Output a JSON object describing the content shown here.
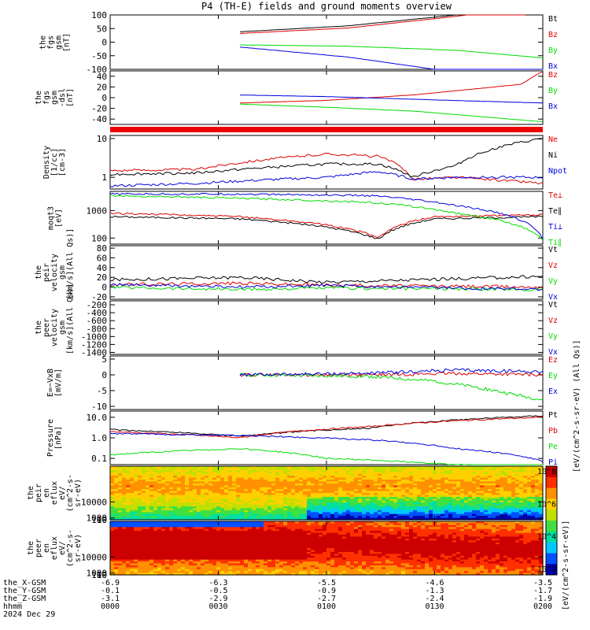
{
  "title": "P4 (TH-E) fields and ground moments overview",
  "colors": {
    "black": "#000000",
    "red": "#dd0000",
    "green": "#00dd00",
    "blue": "#0000dd"
  },
  "chart_data": [
    {
      "type": "line",
      "id": "fgs-gsm",
      "ylabel_lines": [
        "the",
        "fgs",
        "gsm",
        "[nT]"
      ],
      "ylim": [
        -100,
        100
      ],
      "yticks": [
        100,
        50,
        0,
        -50,
        -100
      ],
      "series": [
        {
          "name": "Bt",
          "color": "#000000",
          "t": [
            0.3,
            0.55,
            0.8,
            0.96
          ],
          "v": [
            38,
            60,
            100,
            140
          ]
        },
        {
          "name": "Bz",
          "color": "#dd0000",
          "t": [
            0.3,
            0.55,
            0.8,
            0.96
          ],
          "v": [
            32,
            52,
            95,
            130
          ]
        },
        {
          "name": "By",
          "color": "#00dd00",
          "t": [
            0.3,
            0.55,
            0.8,
            1.0
          ],
          "v": [
            -10,
            -15,
            -30,
            -58
          ]
        },
        {
          "name": "Bx",
          "color": "#0000dd",
          "t": [
            0.3,
            0.55,
            0.75,
            1.0
          ],
          "v": [
            -18,
            -55,
            -100,
            -140
          ]
        }
      ]
    },
    {
      "type": "line",
      "id": "fgs-dsl",
      "ylabel_lines": [
        "the",
        "fgs",
        "gsm",
        "-dsl",
        "[nT]"
      ],
      "ylim": [
        -50,
        50
      ],
      "yticks": [
        40,
        20,
        0,
        -20,
        -40
      ],
      "series": [
        {
          "name": "Bz",
          "color": "#dd0000",
          "t": [
            0.3,
            0.5,
            0.7,
            0.95,
            0.99,
            1.0
          ],
          "v": [
            -10,
            -5,
            5,
            25,
            45,
            48
          ]
        },
        {
          "name": "By",
          "color": "#00dd00",
          "t": [
            0.3,
            0.5,
            0.7,
            1.0
          ],
          "v": [
            -12,
            -18,
            -25,
            -45
          ]
        },
        {
          "name": "Bx",
          "color": "#0000dd",
          "t": [
            0.3,
            0.5,
            0.7,
            1.0
          ],
          "v": [
            5,
            2,
            -3,
            -10
          ]
        }
      ]
    },
    {
      "type": "line",
      "id": "density",
      "log": true,
      "ylabel_lines": [
        "Density",
        "[1/cc]",
        "[cm-3]"
      ],
      "ylim": [
        0.5,
        12
      ],
      "yticks": [
        10,
        1
      ],
      "series": [
        {
          "name": "Ne",
          "color": "#dd0000",
          "t": [
            0,
            0.2,
            0.5,
            0.62,
            0.7,
            0.8,
            1.0
          ],
          "v": [
            1.5,
            1.6,
            4.0,
            3.5,
            0.9,
            1.0,
            0.7
          ]
        },
        {
          "name": "Ni",
          "color": "#000000",
          "t": [
            0,
            0.2,
            0.5,
            0.62,
            0.7,
            0.8,
            1.0
          ],
          "v": [
            1.2,
            1.3,
            2.2,
            2.2,
            1.0,
            2.0,
            10
          ]
        },
        {
          "name": "Npot",
          "color": "#0000dd",
          "t": [
            0,
            0.2,
            0.5,
            0.62,
            0.7,
            0.8,
            1.0
          ],
          "v": [
            0.6,
            0.7,
            1.0,
            1.4,
            0.9,
            1.0,
            1.0
          ]
        }
      ]
    },
    {
      "type": "line",
      "id": "temperature",
      "log": true,
      "ylabel_lines": [
        "moqt3",
        "[eV]"
      ],
      "ylim": [
        60,
        5000
      ],
      "yticks": [
        1000,
        100
      ],
      "series": [
        {
          "name": "Te⊥",
          "color": "#dd0000",
          "t": [
            0,
            0.3,
            0.5,
            0.62,
            0.75,
            1.0
          ],
          "v": [
            800,
            600,
            300,
            100,
            600,
            700
          ]
        },
        {
          "name": "Te∥",
          "color": "#000000",
          "t": [
            0,
            0.3,
            0.5,
            0.62,
            0.75,
            1.0
          ],
          "v": [
            600,
            500,
            250,
            90,
            500,
            600
          ]
        },
        {
          "name": "Ti⊥",
          "color": "#0000dd",
          "t": [
            0,
            0.3,
            0.6,
            0.8,
            1.0
          ],
          "v": [
            4000,
            4000,
            3500,
            1500,
            90
          ]
        },
        {
          "name": "Ti∥",
          "color": "#00dd00",
          "t": [
            0,
            0.3,
            0.6,
            0.8,
            1.0
          ],
          "v": [
            3500,
            2800,
            2000,
            800,
            80
          ]
        }
      ]
    },
    {
      "type": "line",
      "id": "peir-velocity",
      "ylabel_lines": [
        "the",
        "peir",
        "velocity",
        "gsm",
        "[km/s](All Qs)]"
      ],
      "ylim": [
        -25,
        85
      ],
      "yticks": [
        80,
        60,
        40,
        20,
        0,
        -20
      ],
      "series": [
        {
          "name": "Vt",
          "color": "#000000",
          "t": [
            0,
            0.3,
            0.5,
            1.0
          ],
          "v": [
            15,
            20,
            10,
            22
          ]
        },
        {
          "name": "Vz",
          "color": "#dd0000",
          "t": [
            0,
            0.3,
            0.5,
            1.0
          ],
          "v": [
            5,
            8,
            4,
            0
          ]
        },
        {
          "name": "Vy",
          "color": "#00dd00",
          "t": [
            0,
            0.3,
            0.5,
            1.0
          ],
          "v": [
            0,
            -5,
            -2,
            -5
          ]
        },
        {
          "name": "Vx",
          "color": "#0000dd",
          "t": [
            0,
            0.3,
            0.5,
            1.0
          ],
          "v": [
            5,
            0,
            3,
            -5
          ]
        }
      ]
    },
    {
      "type": "line",
      "id": "peer-velocity",
      "ylabel_lines": [
        "the",
        "peer",
        "velocity",
        "gsm",
        "[km/s](All Qs)]"
      ],
      "ylim": [
        -1450,
        -100
      ],
      "yticks": [
        -200,
        -400,
        -600,
        -800,
        -1000,
        -1200,
        -1400
      ],
      "legend": [
        "Vt",
        "Vz",
        "Vy",
        "Vx"
      ],
      "series": []
    },
    {
      "type": "line",
      "id": "efield",
      "ylabel_lines": [
        "E=−VxB",
        "[mV/m]"
      ],
      "ylim": [
        -11,
        6
      ],
      "yticks": [
        5,
        0,
        -5,
        -10
      ],
      "series": [
        {
          "name": "Ez",
          "color": "#dd0000",
          "t": [
            0.3,
            0.6,
            0.8,
            1.0
          ],
          "v": [
            0,
            0,
            0.5,
            0
          ]
        },
        {
          "name": "Ey",
          "color": "#00dd00",
          "t": [
            0.3,
            0.6,
            0.75,
            0.85,
            1.0
          ],
          "v": [
            0,
            -0.5,
            -2,
            -4,
            -8
          ]
        },
        {
          "name": "Ex",
          "color": "#0000dd",
          "t": [
            0.3,
            0.6,
            0.8,
            1.0
          ],
          "v": [
            0,
            0.5,
            1.5,
            1
          ]
        }
      ]
    },
    {
      "type": "line",
      "id": "pressure",
      "log": true,
      "ylabel_lines": [
        "Pressure",
        "[nPa]"
      ],
      "ylim": [
        0.05,
        20
      ],
      "yticks": [
        10.0,
        1.0,
        0.1
      ],
      "ytick_labels": [
        "10.0",
        "1.0",
        "0.1"
      ],
      "series": [
        {
          "name": "Pt",
          "color": "#000000",
          "t": [
            0,
            0.3,
            0.6,
            1.0
          ],
          "v": [
            2.5,
            1.2,
            3.0,
            12
          ]
        },
        {
          "name": "Pb",
          "color": "#dd0000",
          "t": [
            0,
            0.3,
            0.6,
            1.0
          ],
          "v": [
            2.0,
            1.0,
            3.5,
            10
          ]
        },
        {
          "name": "Pe",
          "color": "#00dd00",
          "t": [
            0,
            0.3,
            0.5,
            0.8,
            1.0
          ],
          "v": [
            0.15,
            0.3,
            0.1,
            0.05,
            0.04
          ]
        },
        {
          "name": "Pi",
          "color": "#0000dd",
          "t": [
            0,
            0.3,
            0.6,
            0.8,
            1.0
          ],
          "v": [
            1.6,
            1.3,
            0.8,
            0.3,
            0.07
          ]
        }
      ]
    },
    {
      "type": "heatmap",
      "id": "peir-spec",
      "ylabel_lines": [
        "the",
        "peir",
        "en",
        "eflux",
        "eV/",
        "(cm^2-s-",
        "sr-eV)"
      ],
      "ylim": [
        7,
        30000
      ],
      "yticks": [
        10000,
        1000,
        100,
        10
      ],
      "ytick_labels": [
        "10000",
        "1000",
        "100",
        "10"
      ]
    },
    {
      "type": "heatmap",
      "id": "peer-spec",
      "ylabel_lines": [
        "the",
        "peer",
        "en",
        "eflux",
        "eV/",
        "(cm^2-s-",
        "sr-eV)"
      ],
      "ylim": [
        7,
        30000
      ],
      "yticks": [
        10000,
        1000,
        100,
        10
      ],
      "ytick_labels": [
        "10000",
        "1000",
        "100",
        "10"
      ]
    }
  ],
  "colorbar": {
    "ticks": [
      "10^8",
      "10^6",
      "10^4",
      "10^2"
    ],
    "label": "[eV/(cm^2-s-sr-eV)]",
    "label2": "[eV/(cm^2-s-sr-eV) (All Qs)]"
  },
  "xaxis": {
    "rows": [
      {
        "label": "the_X-GSM",
        "values": [
          "-6.9",
          "-6.3",
          "-5.5",
          "-4.6",
          "-3.5"
        ]
      },
      {
        "label": "the_Y-GSM",
        "values": [
          "-0.1",
          "-0.5",
          "-0.9",
          "-1.3",
          "-1.7"
        ]
      },
      {
        "label": "the_Z-GSM",
        "values": [
          "-3.1",
          "-2.9",
          "-2.7",
          "-2.4",
          "-1.9"
        ]
      },
      {
        "label": "hhmm",
        "values": [
          "0000",
          "0030",
          "0100",
          "0130",
          "0200"
        ]
      }
    ],
    "date": "2024 Dec 29",
    "tick_fracs": [
      0,
      0.25,
      0.5,
      0.75,
      1.0
    ]
  }
}
